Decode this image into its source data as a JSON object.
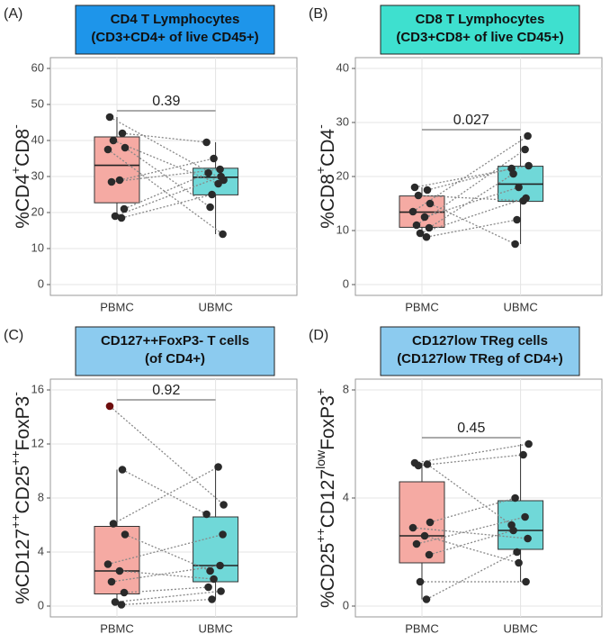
{
  "chart_data": [
    {
      "type": "box",
      "panel": "(A)",
      "title": [
        "CD4 T Lymphocytes",
        "(CD3+CD4+ of live CD45+)"
      ],
      "title_color": "#1e95ea",
      "ylabel": [
        {
          "text": "%CD4"
        },
        {
          "text": "+",
          "sup": true
        },
        {
          "text": "CD8"
        },
        {
          "text": "-",
          "sup": true
        }
      ],
      "categories": [
        "PBMC",
        "UBMC"
      ],
      "colors": [
        "#f5aaa3",
        "#70d8d8"
      ],
      "paired": true,
      "boxes": [
        {
          "q1": 22.7,
          "median": 33.1,
          "q3": 41,
          "whisker_low": 18.5,
          "whisker_high": 46.5
        },
        {
          "q1": 24.9,
          "median": 29.8,
          "q3": 32.3,
          "whisker_low": 14,
          "whisker_high": 39.5
        }
      ],
      "points": [
        [
          46.5,
          42,
          40,
          38,
          37.5,
          29,
          28.5,
          21,
          19,
          18.5
        ],
        [
          29,
          39.5,
          28,
          21.5,
          14,
          35,
          32,
          31,
          30,
          25
        ]
      ],
      "pvalue": 0.39,
      "ylim": [
        -3,
        63
      ],
      "yticks": [
        0,
        10,
        20,
        30,
        40,
        50,
        60
      ],
      "grid": true
    },
    {
      "type": "box",
      "panel": "(B)",
      "title": [
        "CD8 T Lymphocytes",
        "(CD3+CD8+ of live CD45+)"
      ],
      "title_color": "#3ee0cf",
      "ylabel": [
        {
          "text": "%CD8"
        },
        {
          "text": "+",
          "sup": true
        },
        {
          "text": "CD4"
        },
        {
          "text": "-",
          "sup": true
        }
      ],
      "categories": [
        "PBMC",
        "UBMC"
      ],
      "colors": [
        "#f5aaa3",
        "#70d8d8"
      ],
      "paired": true,
      "boxes": [
        {
          "q1": 10.6,
          "median": 13.4,
          "q3": 16.4,
          "whisker_low": 8.8,
          "whisker_high": 18
        },
        {
          "q1": 15.4,
          "median": 18.6,
          "q3": 21.9,
          "whisker_low": 7.5,
          "whisker_high": 27.5
        }
      ],
      "points": [
        [
          18,
          17.5,
          16.5,
          15,
          13.5,
          12.5,
          11,
          10.5,
          9.5,
          8.8
        ],
        [
          22,
          21.5,
          15.5,
          7.5,
          27.5,
          18,
          25,
          20.5,
          16,
          12
        ]
      ],
      "pvalue": 0.027,
      "ylim": [
        -2,
        42
      ],
      "yticks": [
        0,
        10,
        20,
        30,
        40
      ],
      "grid": true
    },
    {
      "type": "box",
      "panel": "(C)",
      "title": [
        "CD127++FoxP3- T cells",
        "(of CD4+)"
      ],
      "title_color": "#8ccbef",
      "ylabel": [
        {
          "text": "%CD127"
        },
        {
          "text": "++",
          "sup": true
        },
        {
          "text": "CD25"
        },
        {
          "text": "++",
          "sup": true
        },
        {
          "text": "FoxP3"
        },
        {
          "text": "-",
          "sup": true
        }
      ],
      "categories": [
        "PBMC",
        "UBMC"
      ],
      "colors": [
        "#f5aaa3",
        "#70d8d8"
      ],
      "paired": true,
      "outlier_color": "#6e0d0d",
      "boxes": [
        {
          "q1": 0.9,
          "median": 2.6,
          "q3": 5.9,
          "whisker_low": 0.1,
          "whisker_high": 10.1
        },
        {
          "q1": 1.8,
          "median": 3.0,
          "q3": 6.6,
          "whisker_low": 0.5,
          "whisker_high": 10.3
        }
      ],
      "points": [
        [
          14.8,
          10.1,
          6.1,
          5.3,
          3.1,
          2.6,
          1.8,
          1.0,
          0.3,
          0.1
        ],
        [
          7.5,
          6.8,
          10.3,
          2.6,
          5.3,
          2.0,
          3.0,
          1.4,
          1.1,
          0.5
        ]
      ],
      "pvalue": 0.92,
      "ylim": [
        -0.8,
        16.8
      ],
      "yticks": [
        0,
        4,
        8,
        12,
        16
      ],
      "grid": true
    },
    {
      "type": "box",
      "panel": "(D)",
      "title": [
        "CD127low TReg cells",
        "(CD127low TReg of CD4+)"
      ],
      "title_color": "#8ccbef",
      "ylabel": [
        {
          "text": "%CD25"
        },
        {
          "text": "++",
          "sup": true
        },
        {
          "text": "CD127"
        },
        {
          "text": "low",
          "sup": true
        },
        {
          "text": "FoxP3"
        },
        {
          "text": "+",
          "sup": true
        }
      ],
      "categories": [
        "PBMC",
        "UBMC"
      ],
      "colors": [
        "#f5aaa3",
        "#70d8d8"
      ],
      "paired": true,
      "boxes": [
        {
          "q1": 1.6,
          "median": 2.6,
          "q3": 4.6,
          "whisker_low": 0.25,
          "whisker_high": 5.3
        },
        {
          "q1": 2.1,
          "median": 2.8,
          "q3": 3.9,
          "whisker_low": 0.9,
          "whisker_high": 6.0
        }
      ],
      "points": [
        [
          5.3,
          5.25,
          5.2,
          3.1,
          2.9,
          2.6,
          2.3,
          1.9,
          0.9,
          0.25
        ],
        [
          6.0,
          3.0,
          5.6,
          4.0,
          2.5,
          1.6,
          3.3,
          2.8,
          0.9,
          2.0
        ]
      ],
      "pvalue": 0.45,
      "ylim": [
        -0.4,
        8.4
      ],
      "yticks": [
        0,
        4,
        8
      ],
      "grid": true
    }
  ]
}
